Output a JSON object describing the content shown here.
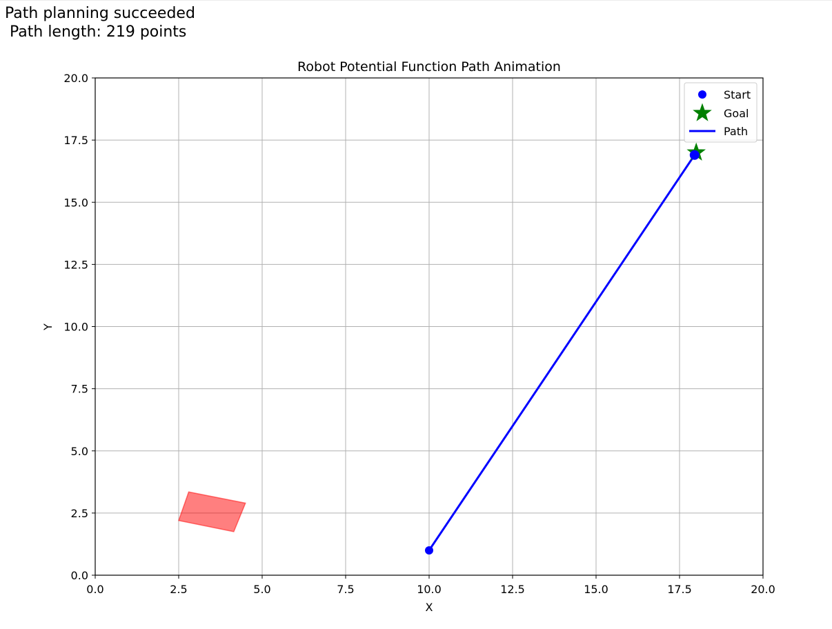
{
  "status": {
    "line1": "Path planning succeeded",
    "line2": " Path length: 219 points"
  },
  "chart_data": {
    "type": "line",
    "title": "Robot Potential Function Path Animation",
    "xlabel": "X",
    "ylabel": "Y",
    "xlim": [
      0,
      20
    ],
    "ylim": [
      0,
      20
    ],
    "xticks": [
      "0.0",
      "2.5",
      "5.0",
      "7.5",
      "10.0",
      "12.5",
      "15.0",
      "17.5",
      "20.0"
    ],
    "yticks": [
      "0.0",
      "2.5",
      "5.0",
      "7.5",
      "10.0",
      "12.5",
      "15.0",
      "17.5",
      "20.0"
    ],
    "grid": true,
    "legend_position": "top-right",
    "legend": [
      {
        "label": "Start",
        "marker": "circle",
        "color": "#0000ff"
      },
      {
        "label": "Goal",
        "marker": "star",
        "color": "#008000"
      },
      {
        "label": "Path",
        "marker": "line",
        "color": "#0000ff"
      }
    ],
    "start": {
      "x": 10.0,
      "y": 1.0
    },
    "goal": {
      "x": 18.0,
      "y": 17.0
    },
    "current_position": {
      "x": 17.95,
      "y": 16.9
    },
    "path": {
      "name": "Path",
      "x": [
        10.0,
        17.95
      ],
      "y": [
        1.0,
        16.9
      ],
      "color": "#0000ff"
    },
    "obstacle": {
      "color": "#ff0000",
      "opacity": 0.5,
      "vertices": [
        [
          2.8,
          3.35
        ],
        [
          4.5,
          2.9
        ],
        [
          4.15,
          1.75
        ],
        [
          2.5,
          2.2
        ]
      ]
    }
  }
}
